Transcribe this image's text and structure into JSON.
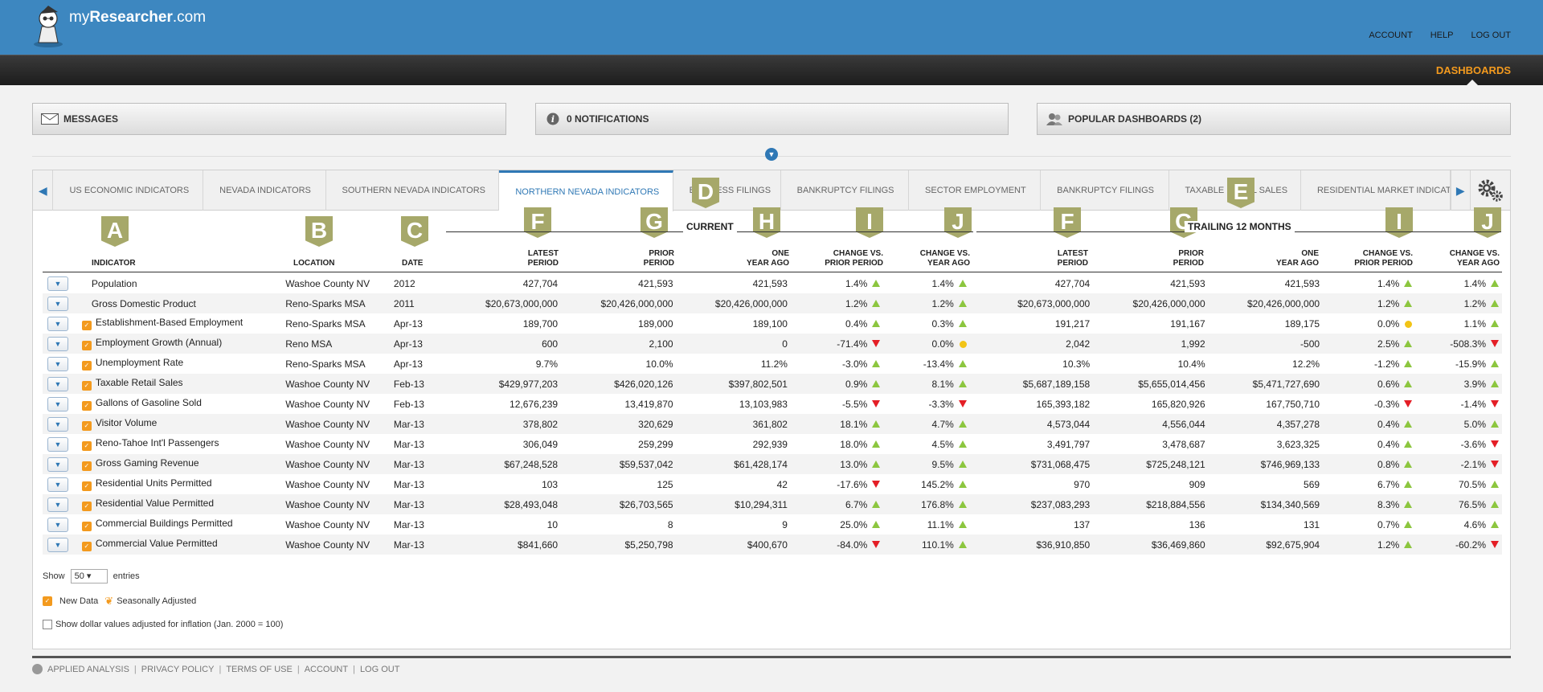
{
  "brand": {
    "prefix": "my",
    "name": "Researcher",
    "suffix": ".com"
  },
  "topnav": [
    "ACCOUNT",
    "HELP",
    "LOG OUT"
  ],
  "dashboards_label": "DASHBOARDS",
  "panels": {
    "messages": "MESSAGES",
    "notifications": "0 NOTIFICATIONS",
    "popular": "POPULAR DASHBOARDS (2)"
  },
  "tabs": [
    "US ECONOMIC INDICATORS",
    "NEVADA INDICATORS",
    "SOUTHERN NEVADA INDICATORS",
    "NORTHERN NEVADA INDICATORS",
    "BUSINESS FILINGS",
    "BANKRUPTCY FILINGS",
    "SECTOR EMPLOYMENT",
    "BANKRUPTCY FILINGS",
    "TAXABLE RETAIL SALES",
    "RESIDENTIAL MARKET INDICATORS"
  ],
  "active_tab": 3,
  "badges": [
    "A",
    "B",
    "C",
    "D",
    "E",
    "F",
    "G",
    "H",
    "I",
    "J"
  ],
  "groups": {
    "current": "CURRENT",
    "trailing": "TRAILING 12 MONTHS"
  },
  "headers": {
    "indicator": "INDICATOR",
    "location": "LOCATION",
    "date": "DATE",
    "latest": [
      "LATEST",
      "PERIOD"
    ],
    "prior": [
      "PRIOR",
      "PERIOD"
    ],
    "yearago": [
      "ONE",
      "YEAR AGO"
    ],
    "chg_prior": [
      "CHANGE VS.",
      "PRIOR PERIOD"
    ],
    "chg_year": [
      "CHANGE VS.",
      "YEAR AGO"
    ]
  },
  "rows": [
    {
      "name": "Population",
      "nd": false,
      "loc": "Washoe County NV",
      "date": "2012",
      "c": [
        "427,704",
        "421,593",
        "421,593",
        "1.4%",
        "up",
        "1.4%",
        "up"
      ],
      "t": [
        "427,704",
        "421,593",
        "421,593",
        "1.4%",
        "up",
        "1.4%",
        "up"
      ]
    },
    {
      "name": "Gross Domestic Product",
      "nd": false,
      "loc": "Reno-Sparks MSA",
      "date": "2011",
      "c": [
        "$20,673,000,000",
        "$20,426,000,000",
        "$20,426,000,000",
        "1.2%",
        "up",
        "1.2%",
        "up"
      ],
      "t": [
        "$20,673,000,000",
        "$20,426,000,000",
        "$20,426,000,000",
        "1.2%",
        "up",
        "1.2%",
        "up"
      ]
    },
    {
      "name": "Establishment-Based Employment",
      "nd": true,
      "loc": "Reno-Sparks MSA",
      "date": "Apr-13",
      "c": [
        "189,700",
        "189,000",
        "189,100",
        "0.4%",
        "up",
        "0.3%",
        "up"
      ],
      "t": [
        "191,217",
        "191,167",
        "189,175",
        "0.0%",
        "flat",
        "1.1%",
        "up"
      ]
    },
    {
      "name": "Employment Growth (Annual)",
      "nd": true,
      "loc": "Reno MSA",
      "date": "Apr-13",
      "c": [
        "600",
        "2,100",
        "0",
        "-71.4%",
        "down",
        "0.0%",
        "flat"
      ],
      "t": [
        "2,042",
        "1,992",
        "-500",
        "2.5%",
        "up",
        "-508.3%",
        "down"
      ]
    },
    {
      "name": "Unemployment Rate",
      "nd": true,
      "loc": "Reno-Sparks MSA",
      "date": "Apr-13",
      "c": [
        "9.7%",
        "10.0%",
        "11.2%",
        "-3.0%",
        "upg",
        "-13.4%",
        "upg"
      ],
      "t": [
        "10.3%",
        "10.4%",
        "12.2%",
        "-1.2%",
        "upg",
        "-15.9%",
        "upg"
      ]
    },
    {
      "name": "Taxable Retail Sales",
      "nd": true,
      "loc": "Washoe County NV",
      "date": "Feb-13",
      "c": [
        "$429,977,203",
        "$426,020,126",
        "$397,802,501",
        "0.9%",
        "up",
        "8.1%",
        "up"
      ],
      "t": [
        "$5,687,189,158",
        "$5,655,014,456",
        "$5,471,727,690",
        "0.6%",
        "up",
        "3.9%",
        "up"
      ]
    },
    {
      "name": "Gallons of Gasoline Sold",
      "nd": true,
      "loc": "Washoe County NV",
      "date": "Feb-13",
      "c": [
        "12,676,239",
        "13,419,870",
        "13,103,983",
        "-5.5%",
        "down",
        "-3.3%",
        "down"
      ],
      "t": [
        "165,393,182",
        "165,820,926",
        "167,750,710",
        "-0.3%",
        "down",
        "-1.4%",
        "down"
      ]
    },
    {
      "name": "Visitor Volume",
      "nd": true,
      "loc": "Washoe County NV",
      "date": "Mar-13",
      "c": [
        "378,802",
        "320,629",
        "361,802",
        "18.1%",
        "up",
        "4.7%",
        "up"
      ],
      "t": [
        "4,573,044",
        "4,556,044",
        "4,357,278",
        "0.4%",
        "up",
        "5.0%",
        "up"
      ]
    },
    {
      "name": "Reno-Tahoe Int'l Passengers",
      "nd": true,
      "loc": "Washoe County NV",
      "date": "Mar-13",
      "c": [
        "306,049",
        "259,299",
        "292,939",
        "18.0%",
        "up",
        "4.5%",
        "up"
      ],
      "t": [
        "3,491,797",
        "3,478,687",
        "3,623,325",
        "0.4%",
        "up",
        "-3.6%",
        "down"
      ]
    },
    {
      "name": "Gross Gaming Revenue",
      "nd": true,
      "loc": "Washoe County NV",
      "date": "Mar-13",
      "c": [
        "$67,248,528",
        "$59,537,042",
        "$61,428,174",
        "13.0%",
        "up",
        "9.5%",
        "up"
      ],
      "t": [
        "$731,068,475",
        "$725,248,121",
        "$746,969,133",
        "0.8%",
        "up",
        "-2.1%",
        "down"
      ]
    },
    {
      "name": "Residential Units Permitted",
      "nd": true,
      "loc": "Washoe County NV",
      "date": "Mar-13",
      "c": [
        "103",
        "125",
        "42",
        "-17.6%",
        "down",
        "145.2%",
        "up"
      ],
      "t": [
        "970",
        "909",
        "569",
        "6.7%",
        "up",
        "70.5%",
        "up"
      ]
    },
    {
      "name": "Residential Value Permitted",
      "nd": true,
      "loc": "Washoe County NV",
      "date": "Mar-13",
      "c": [
        "$28,493,048",
        "$26,703,565",
        "$10,294,311",
        "6.7%",
        "up",
        "176.8%",
        "up"
      ],
      "t": [
        "$237,083,293",
        "$218,884,556",
        "$134,340,569",
        "8.3%",
        "up",
        "76.5%",
        "up"
      ]
    },
    {
      "name": "Commercial Buildings Permitted",
      "nd": true,
      "loc": "Washoe County NV",
      "date": "Mar-13",
      "c": [
        "10",
        "8",
        "9",
        "25.0%",
        "up",
        "11.1%",
        "up"
      ],
      "t": [
        "137",
        "136",
        "131",
        "0.7%",
        "up",
        "4.6%",
        "up"
      ]
    },
    {
      "name": "Commercial Value Permitted",
      "nd": true,
      "loc": "Washoe County NV",
      "date": "Mar-13",
      "c": [
        "$841,660",
        "$5,250,798",
        "$400,670",
        "-84.0%",
        "down",
        "110.1%",
        "up"
      ],
      "t": [
        "$36,910,850",
        "$36,469,860",
        "$92,675,904",
        "1.2%",
        "up",
        "-60.2%",
        "down"
      ]
    }
  ],
  "show": {
    "label": "Show",
    "value": "50",
    "suffix": "entries"
  },
  "legend": {
    "new_data": "New Data",
    "seasonal": "Seasonally Adjusted"
  },
  "inflation_label": "Show dollar values adjusted for inflation (Jan. 2000 = 100)",
  "footer": [
    "APPLIED ANALYSIS",
    "PRIVACY POLICY",
    "TERMS OF USE",
    "ACCOUNT",
    "LOG OUT"
  ],
  "colors": {
    "primary": "#3d87c0",
    "accent": "#f39a1e",
    "up": "#8cc63f",
    "down": "#e41e26",
    "flat": "#f2c416",
    "badge": "#a6a86a"
  }
}
